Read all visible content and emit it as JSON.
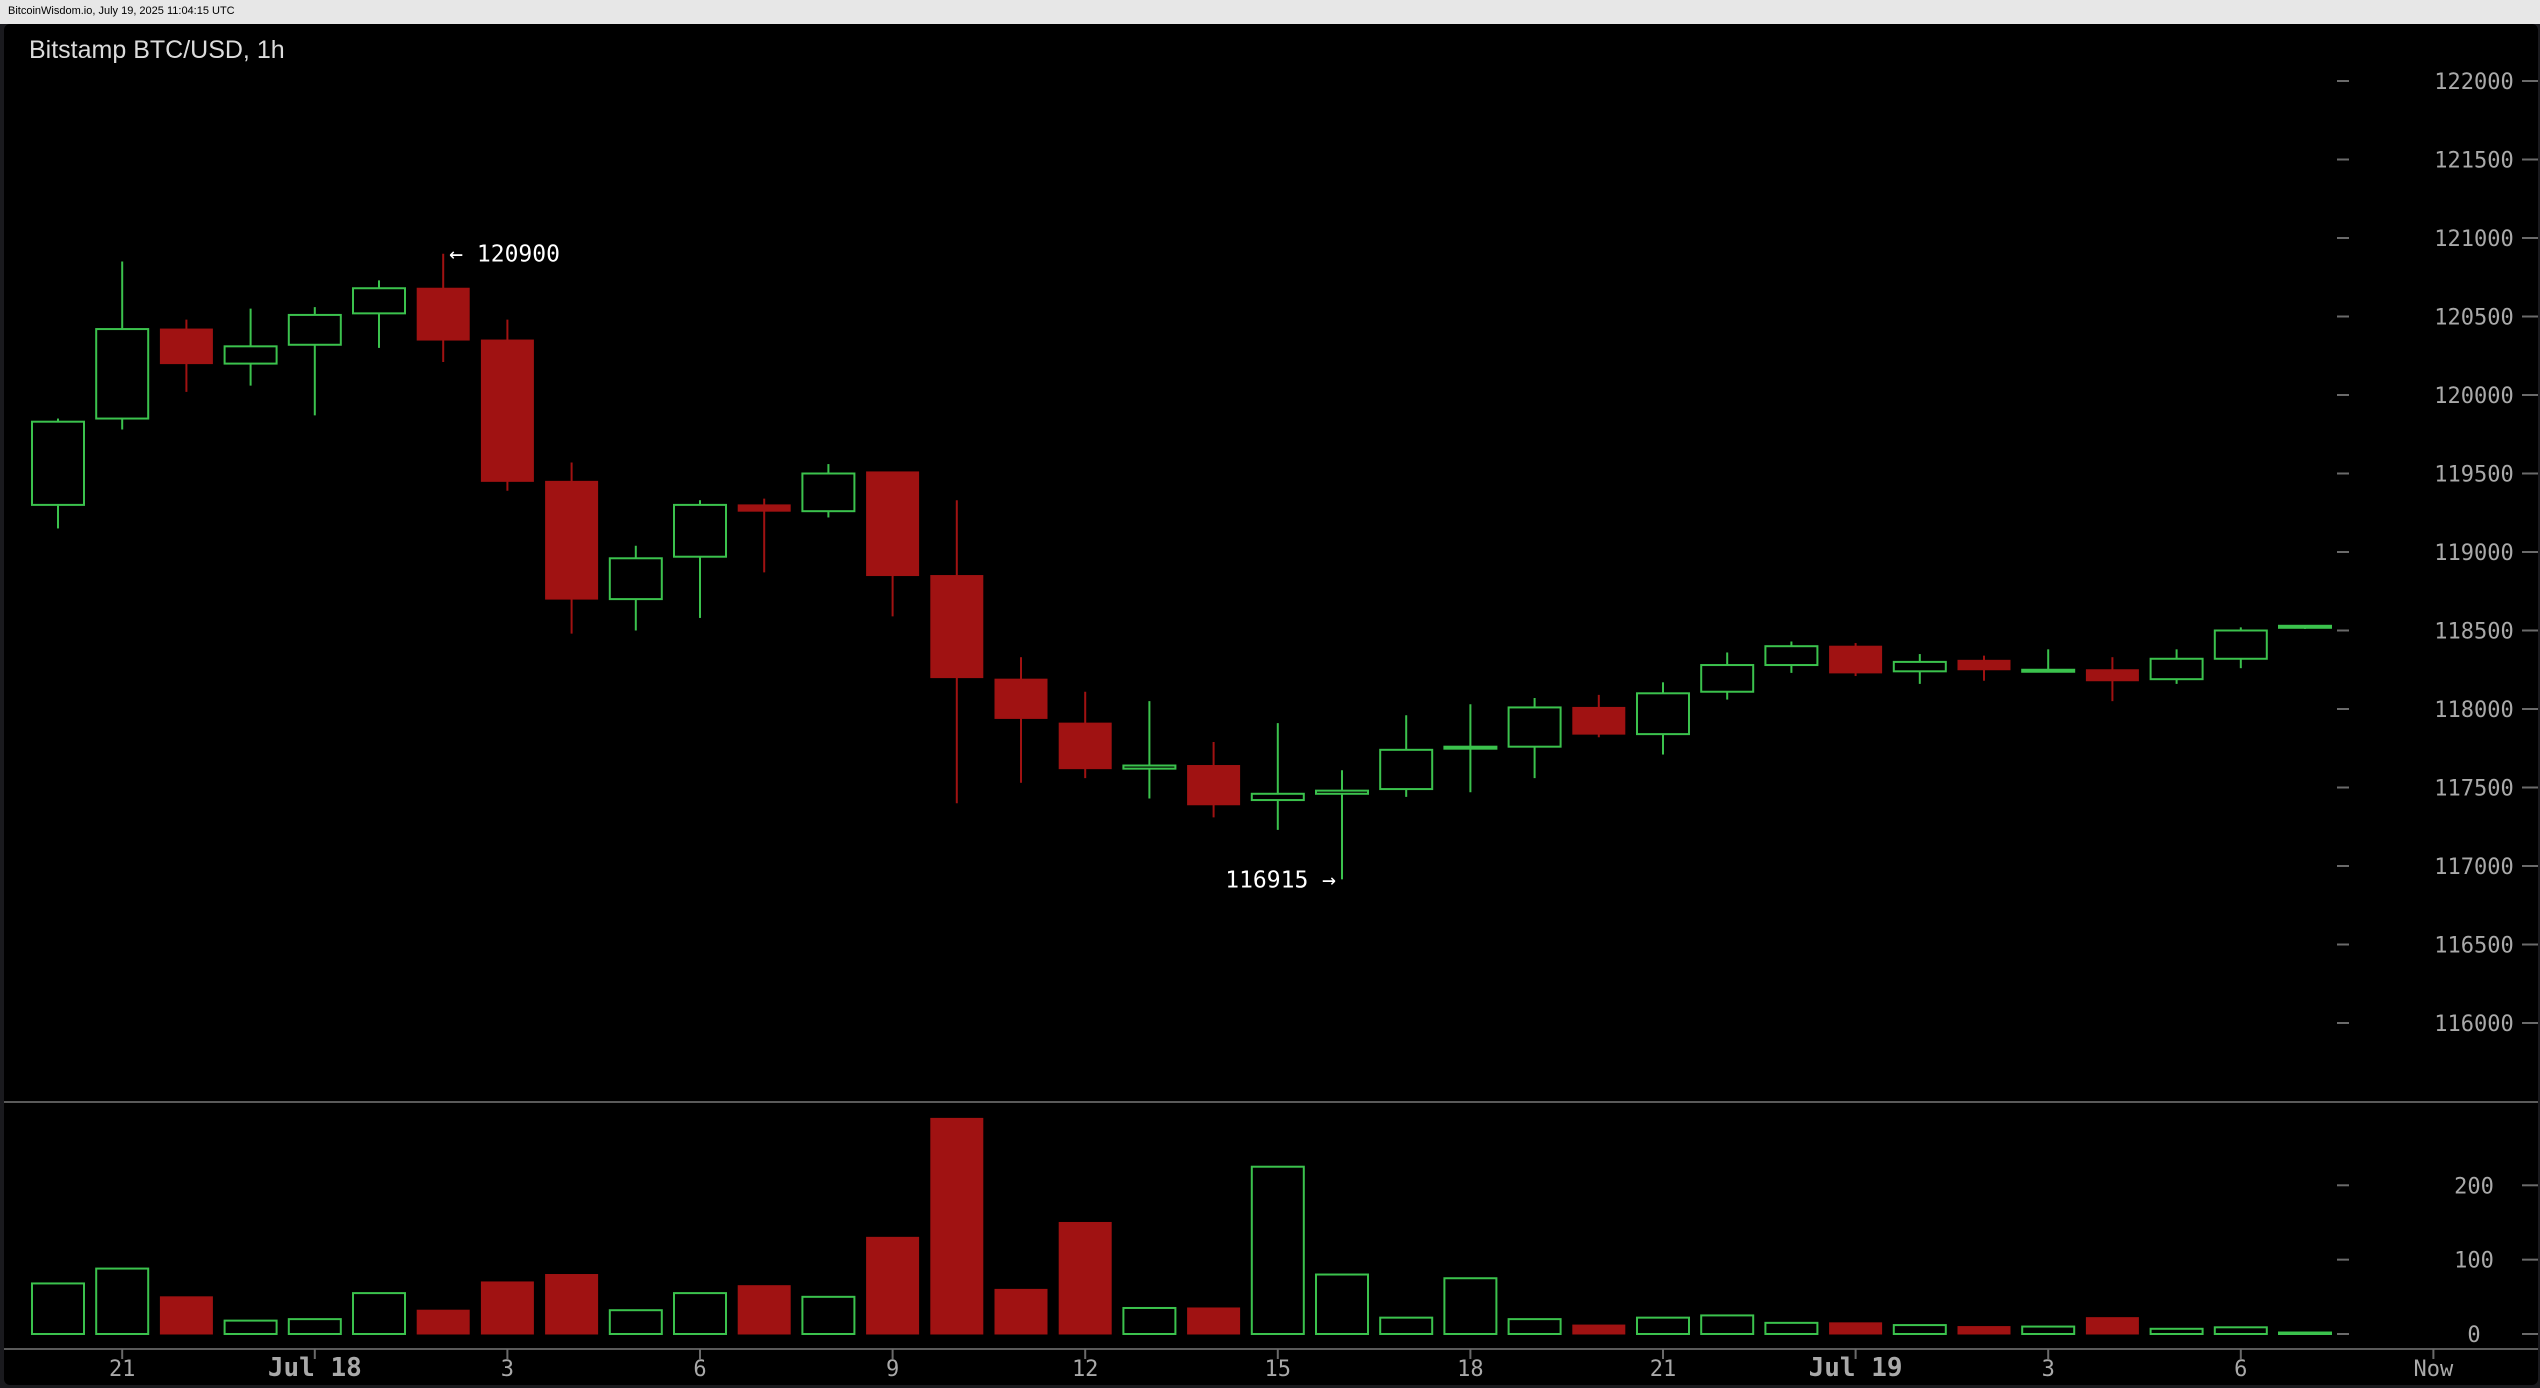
{
  "header": {
    "source_timestamp": "BitcoinWisdom.io, July 19, 2025 11:04:15 UTC"
  },
  "colors": {
    "up": "#3bc24d",
    "down": "#a01212",
    "background": "#000000",
    "text": "#a9a9a9"
  },
  "chart_data": {
    "type": "candlestick",
    "title": "Bitstamp BTC/USD, 1h",
    "price_axis": {
      "min": 116000,
      "max": 122000,
      "step": 500,
      "position": "right"
    },
    "volume_axis": {
      "min": 0,
      "max": 200,
      "ticks": [
        0,
        100,
        200
      ],
      "position": "right"
    },
    "x_ticks": [
      {
        "label": "21",
        "index": 1,
        "bold": false
      },
      {
        "label": "Jul 18",
        "index": 4,
        "bold": true
      },
      {
        "label": "3",
        "index": 7,
        "bold": false
      },
      {
        "label": "6",
        "index": 10,
        "bold": false
      },
      {
        "label": "9",
        "index": 13,
        "bold": false
      },
      {
        "label": "12",
        "index": 16,
        "bold": false
      },
      {
        "label": "15",
        "index": 19,
        "bold": false
      },
      {
        "label": "18",
        "index": 22,
        "bold": false
      },
      {
        "label": "21",
        "index": 25,
        "bold": false
      },
      {
        "label": "Jul 19",
        "index": 28,
        "bold": true
      },
      {
        "label": "3",
        "index": 31,
        "bold": false
      },
      {
        "label": "6",
        "index": 34,
        "bold": false
      },
      {
        "label": "Now",
        "index": 37,
        "bold": false
      }
    ],
    "annotations": [
      {
        "text": "← 120900",
        "value": 120900,
        "index": 6,
        "side": "right"
      },
      {
        "text": "116915 →",
        "value": 116915,
        "index": 20,
        "side": "left"
      }
    ],
    "candles": [
      {
        "o": 119300,
        "h": 119850,
        "l": 119150,
        "c": 119830,
        "v": 68
      },
      {
        "o": 119850,
        "h": 120850,
        "l": 119780,
        "c": 120420,
        "v": 88
      },
      {
        "o": 120420,
        "h": 120480,
        "l": 120020,
        "c": 120200,
        "v": 50
      },
      {
        "o": 120200,
        "h": 120550,
        "l": 120060,
        "c": 120310,
        "v": 18
      },
      {
        "o": 120320,
        "h": 120560,
        "l": 119870,
        "c": 120510,
        "v": 20
      },
      {
        "o": 120520,
        "h": 120730,
        "l": 120300,
        "c": 120680,
        "v": 55
      },
      {
        "o": 120680,
        "h": 120900,
        "l": 120210,
        "c": 120350,
        "v": 32
      },
      {
        "o": 120350,
        "h": 120480,
        "l": 119390,
        "c": 119450,
        "v": 70
      },
      {
        "o": 119450,
        "h": 119570,
        "l": 118480,
        "c": 118700,
        "v": 80
      },
      {
        "o": 118700,
        "h": 119040,
        "l": 118500,
        "c": 118960,
        "v": 32
      },
      {
        "o": 118970,
        "h": 119330,
        "l": 118580,
        "c": 119300,
        "v": 55
      },
      {
        "o": 119300,
        "h": 119340,
        "l": 118870,
        "c": 119260,
        "v": 65
      },
      {
        "o": 119260,
        "h": 119560,
        "l": 119220,
        "c": 119500,
        "v": 50
      },
      {
        "o": 119510,
        "h": 119510,
        "l": 118590,
        "c": 118850,
        "v": 130
      },
      {
        "o": 118850,
        "h": 119330,
        "l": 117400,
        "c": 118200,
        "v": 290
      },
      {
        "o": 118190,
        "h": 118330,
        "l": 117530,
        "c": 117940,
        "v": 60
      },
      {
        "o": 117910,
        "h": 118110,
        "l": 117560,
        "c": 117620,
        "v": 150
      },
      {
        "o": 117620,
        "h": 118050,
        "l": 117430,
        "c": 117640,
        "v": 35
      },
      {
        "o": 117640,
        "h": 117790,
        "l": 117310,
        "c": 117390,
        "v": 35
      },
      {
        "o": 117420,
        "h": 117910,
        "l": 117230,
        "c": 117460,
        "v": 225
      },
      {
        "o": 117460,
        "h": 117610,
        "l": 116915,
        "c": 117480,
        "v": 80
      },
      {
        "o": 117490,
        "h": 117960,
        "l": 117440,
        "c": 117740,
        "v": 22
      },
      {
        "o": 117750,
        "h": 118030,
        "l": 117470,
        "c": 117760,
        "v": 75
      },
      {
        "o": 117760,
        "h": 118070,
        "l": 117560,
        "c": 118010,
        "v": 20
      },
      {
        "o": 118010,
        "h": 118090,
        "l": 117820,
        "c": 117840,
        "v": 12
      },
      {
        "o": 117840,
        "h": 118170,
        "l": 117710,
        "c": 118100,
        "v": 22
      },
      {
        "o": 118110,
        "h": 118360,
        "l": 118060,
        "c": 118280,
        "v": 25
      },
      {
        "o": 118280,
        "h": 118430,
        "l": 118230,
        "c": 118400,
        "v": 15
      },
      {
        "o": 118400,
        "h": 118420,
        "l": 118210,
        "c": 118230,
        "v": 15
      },
      {
        "o": 118240,
        "h": 118350,
        "l": 118160,
        "c": 118300,
        "v": 12
      },
      {
        "o": 118310,
        "h": 118340,
        "l": 118180,
        "c": 118250,
        "v": 10
      },
      {
        "o": 118250,
        "h": 118380,
        "l": 118240,
        "c": 118250,
        "v": 10
      },
      {
        "o": 118250,
        "h": 118330,
        "l": 118050,
        "c": 118180,
        "v": 22
      },
      {
        "o": 118190,
        "h": 118380,
        "l": 118160,
        "c": 118320,
        "v": 7
      },
      {
        "o": 118320,
        "h": 118520,
        "l": 118260,
        "c": 118500,
        "v": 9
      },
      {
        "o": 118520,
        "h": 118530,
        "l": 118510,
        "c": 118530,
        "v": 2
      }
    ]
  }
}
